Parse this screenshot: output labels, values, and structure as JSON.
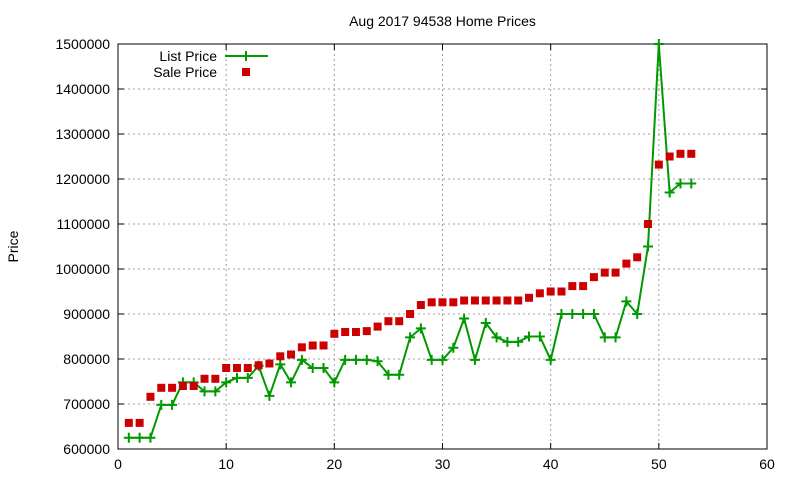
{
  "chart_data": {
    "type": "line",
    "title": "Aug 2017 94538 Home Prices",
    "xlabel": "",
    "ylabel": "Price",
    "xlim": [
      0,
      60
    ],
    "ylim": [
      600000,
      1500000
    ],
    "x_ticks": [
      0,
      10,
      20,
      30,
      40,
      50,
      60
    ],
    "y_ticks": [
      600000,
      700000,
      800000,
      900000,
      1000000,
      1100000,
      1200000,
      1300000,
      1400000,
      1500000
    ],
    "grid": true,
    "legend_position": "top-left",
    "series": [
      {
        "name": "List Price",
        "style": "line-plus",
        "color": "#009900",
        "x": [
          1,
          2,
          3,
          4,
          5,
          6,
          7,
          8,
          9,
          10,
          11,
          12,
          13,
          14,
          15,
          16,
          17,
          18,
          19,
          20,
          21,
          22,
          23,
          24,
          25,
          26,
          27,
          28,
          29,
          30,
          31,
          32,
          33,
          34,
          35,
          36,
          37,
          38,
          39,
          40,
          41,
          42,
          43,
          44,
          45,
          46,
          47,
          48,
          49,
          50,
          51,
          52,
          53
        ],
        "y": [
          625000,
          625000,
          625000,
          698000,
          698000,
          748000,
          748000,
          728000,
          728000,
          748000,
          758000,
          758000,
          785000,
          718000,
          788000,
          748000,
          798000,
          780000,
          780000,
          748000,
          798000,
          798000,
          798000,
          795000,
          765000,
          765000,
          848000,
          868000,
          798000,
          798000,
          825000,
          890000,
          798000,
          880000,
          848000,
          838000,
          838000,
          850000,
          850000,
          798000,
          900000,
          900000,
          900000,
          900000,
          848000,
          848000,
          928000,
          900000,
          1050000,
          1500000,
          1170000,
          1190000,
          1190000
        ]
      },
      {
        "name": "Sale Price",
        "style": "square-points",
        "color": "#cc0000",
        "x": [
          1,
          2,
          3,
          4,
          5,
          6,
          7,
          8,
          9,
          10,
          11,
          12,
          13,
          14,
          15,
          16,
          17,
          18,
          19,
          20,
          21,
          22,
          23,
          24,
          25,
          26,
          27,
          28,
          29,
          30,
          31,
          32,
          33,
          34,
          35,
          36,
          37,
          38,
          39,
          40,
          41,
          42,
          43,
          44,
          45,
          46,
          47,
          48,
          49,
          50,
          51,
          52,
          53
        ],
        "y": [
          658000,
          658000,
          716000,
          736000,
          736000,
          740000,
          740000,
          756000,
          756000,
          780000,
          780000,
          780000,
          786000,
          790000,
          806000,
          810000,
          826000,
          830000,
          830000,
          856000,
          860000,
          860000,
          862000,
          872000,
          884000,
          884000,
          900000,
          920000,
          926000,
          926000,
          926000,
          930000,
          930000,
          930000,
          930000,
          930000,
          930000,
          936000,
          946000,
          950000,
          950000,
          962000,
          962000,
          982000,
          992000,
          992000,
          1012000,
          1026000,
          1100000,
          1232000,
          1250000,
          1256000,
          1256000
        ]
      }
    ]
  }
}
